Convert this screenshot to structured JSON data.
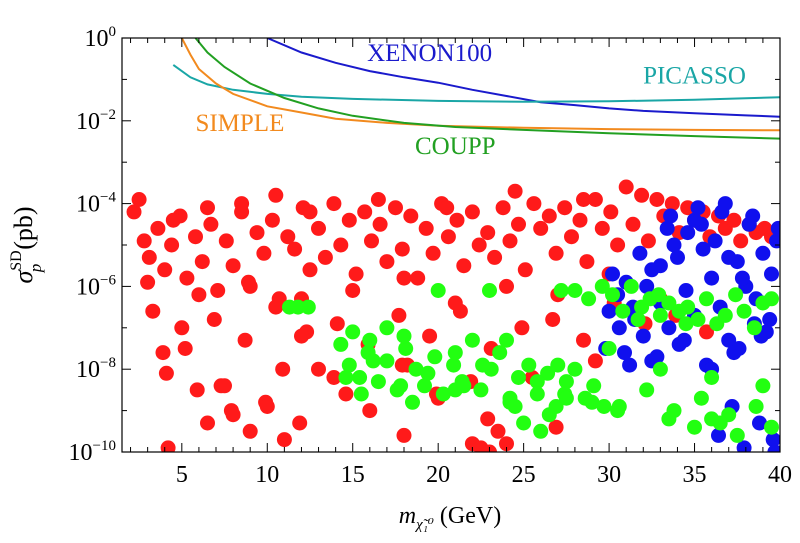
{
  "chart_data": {
    "type": "scatter",
    "title": "",
    "xlabel": {
      "symbol": "m",
      "subscript": "χ̃₁⁰",
      "unit": "(GeV)"
    },
    "ylabel": {
      "symbol": "σ",
      "sub": "p",
      "sup": "SD",
      "unit": "(pb)"
    },
    "xlim": [
      1.5,
      40
    ],
    "ylim_log10": [
      -10,
      0
    ],
    "y_scale": "log",
    "x_ticks": [
      5,
      10,
      15,
      20,
      25,
      30,
      35,
      40
    ],
    "y_ticks": [
      {
        "base": "10",
        "exp": "0"
      },
      {
        "base": "10",
        "exp": "−2"
      },
      {
        "base": "10",
        "exp": "−4"
      },
      {
        "base": "10",
        "exp": "−6"
      },
      {
        "base": "10",
        "exp": "−8"
      },
      {
        "base": "10",
        "exp": "−10"
      }
    ],
    "y_tick_exponents": [
      0,
      -2,
      -4,
      -6,
      -8,
      -10
    ],
    "limit_curves": [
      {
        "name": "XENON100",
        "color": "#1a1acc",
        "label_x": 19.5,
        "label_log10y": -0.55,
        "points": [
          [
            10.0,
            0.0
          ],
          [
            12,
            -0.35
          ],
          [
            14,
            -0.6
          ],
          [
            16,
            -0.8
          ],
          [
            18,
            -0.95
          ],
          [
            20,
            -1.08
          ],
          [
            22,
            -1.25
          ],
          [
            24,
            -1.4
          ],
          [
            26,
            -1.55
          ],
          [
            28,
            -1.62
          ],
          [
            30,
            -1.7
          ],
          [
            32,
            -1.76
          ],
          [
            35,
            -1.82
          ],
          [
            38,
            -1.87
          ],
          [
            40,
            -1.9
          ]
        ]
      },
      {
        "name": "PICASSO",
        "color": "#1aa6a6",
        "label_x": 35.0,
        "label_log10y": -1.1,
        "points": [
          [
            4.5,
            -0.65
          ],
          [
            5.5,
            -0.95
          ],
          [
            6.5,
            -1.12
          ],
          [
            8,
            -1.25
          ],
          [
            10,
            -1.35
          ],
          [
            12,
            -1.42
          ],
          [
            15,
            -1.47
          ],
          [
            20,
            -1.52
          ],
          [
            25,
            -1.54
          ],
          [
            30,
            -1.53
          ],
          [
            35,
            -1.49
          ],
          [
            40,
            -1.43
          ]
        ]
      },
      {
        "name": "SIMPLE",
        "color": "#f28a1e",
        "label_x": 8.4,
        "label_log10y": -2.25,
        "points": [
          [
            5.0,
            0.0
          ],
          [
            5.5,
            -0.4
          ],
          [
            6,
            -0.75
          ],
          [
            7,
            -1.1
          ],
          [
            8,
            -1.35
          ],
          [
            10,
            -1.65
          ],
          [
            12,
            -1.8
          ],
          [
            14,
            -1.95
          ],
          [
            17,
            -2.05
          ],
          [
            20,
            -2.12
          ],
          [
            25,
            -2.17
          ],
          [
            30,
            -2.2
          ],
          [
            35,
            -2.22
          ],
          [
            40,
            -2.23
          ]
        ]
      },
      {
        "name": "COUPP",
        "color": "#22a022",
        "label_x": 21.0,
        "label_log10y": -2.8,
        "points": [
          [
            5.8,
            0.0
          ],
          [
            6.5,
            -0.35
          ],
          [
            7.5,
            -0.7
          ],
          [
            9,
            -1.1
          ],
          [
            11,
            -1.45
          ],
          [
            13,
            -1.7
          ],
          [
            15,
            -1.88
          ],
          [
            18,
            -2.05
          ],
          [
            21,
            -2.15
          ],
          [
            25,
            -2.22
          ],
          [
            30,
            -2.3
          ],
          [
            35,
            -2.37
          ],
          [
            40,
            -2.43
          ]
        ]
      }
    ],
    "scatter_series": [
      {
        "name": "red points",
        "color": "#ff1a1a",
        "x": [
          2.2,
          2.8,
          3.1,
          3.6,
          4.0,
          4.4,
          4.9,
          5.3,
          5.8,
          6.2,
          6.7,
          7.1,
          7.6,
          8.0,
          8.5,
          8.9,
          9.4,
          9.8,
          10.3,
          10.7,
          11.2,
          11.6,
          12.1,
          12.5,
          13.0,
          13.4,
          13.9,
          14.3,
          14.8,
          15.2,
          15.7,
          16.1,
          16.6,
          17.0,
          17.5,
          17.9,
          18.4,
          18.8,
          19.3,
          19.7,
          20.2,
          20.6,
          21.1,
          21.5,
          22.0,
          22.4,
          22.9,
          23.3,
          23.8,
          24.2,
          24.7,
          25.1,
          25.6,
          26.0,
          26.5,
          26.9,
          27.4,
          27.8,
          28.3,
          28.7,
          29.2,
          29.6,
          30.1,
          30.5,
          31.0,
          31.4,
          31.9,
          32.3,
          32.8,
          33.2,
          33.7,
          34.1,
          34.6,
          35.0,
          35.5,
          35.9,
          36.4,
          36.8,
          37.3,
          37.7,
          38.2,
          38.6,
          39.1,
          39.5,
          3.3,
          5.0,
          6.9,
          8.7,
          10.5,
          12.3,
          14.1,
          15.9,
          17.7,
          19.5,
          21.3,
          23.1,
          24.9,
          26.7,
          28.5,
          30.3,
          32.1,
          33.9,
          35.7,
          4.1,
          7.3,
          10.9,
          14.6,
          18.2,
          21.9,
          25.5,
          29.2,
          3.0,
          6.0,
          9.0,
          12.0,
          15.0,
          18.0,
          21.0,
          24.0,
          27.0,
          30.0,
          33.0,
          2.5,
          4.5,
          6.5,
          8.5,
          10.5,
          12.5,
          16.5,
          20.5,
          24.5,
          28.5,
          3.9,
          5.9,
          7.9,
          9.9,
          11.9,
          13.9,
          17.9,
          19.9,
          22.9,
          26.9,
          8.0,
          9.0,
          10.0,
          11.0,
          12.0,
          13.0,
          16.0,
          18.0,
          20.0,
          22.0,
          22.5,
          23.0,
          23.5,
          24.0,
          6.5,
          7.5,
          4.2,
          5.2
        ],
        "log10y": [
          -4.2,
          -4.9,
          -5.3,
          -4.6,
          -5.6,
          -5.0,
          -4.3,
          -5.8,
          -4.8,
          -5.4,
          -4.5,
          -6.1,
          -4.9,
          -5.5,
          -4.2,
          -5.9,
          -4.7,
          -5.2,
          -4.4,
          -6.3,
          -4.8,
          -5.1,
          -4.1,
          -5.6,
          -4.6,
          -5.3,
          -4.0,
          -5.0,
          -4.4,
          -5.7,
          -4.2,
          -4.9,
          -4.5,
          -5.4,
          -4.1,
          -5.1,
          -4.3,
          -5.8,
          -4.6,
          -5.2,
          -4.0,
          -4.8,
          -4.4,
          -5.5,
          -4.2,
          -5.0,
          -4.7,
          -5.3,
          -4.1,
          -4.9,
          -4.5,
          -5.6,
          -4.0,
          -4.6,
          -4.3,
          -5.2,
          -4.1,
          -4.8,
          -4.4,
          -5.4,
          -3.9,
          -4.6,
          -4.2,
          -5.0,
          -3.6,
          -4.5,
          -3.8,
          -4.9,
          -3.9,
          -4.3,
          -4.0,
          -4.7,
          -4.1,
          -4.4,
          -4.2,
          -4.8,
          -4.3,
          -4.6,
          -4.4,
          -4.9,
          -4.5,
          -4.7,
          -4.6,
          -4.8,
          -6.6,
          -7.0,
          -6.8,
          -7.3,
          -6.5,
          -7.1,
          -6.9,
          -7.4,
          -6.7,
          -7.2,
          -6.6,
          -7.5,
          -7.0,
          -6.8,
          -7.3,
          -6.4,
          -6.9,
          -6.7,
          -7.1,
          -8.1,
          -8.4,
          -8.0,
          -8.6,
          -7.9,
          -8.3,
          -8.2,
          -7.8,
          -5.9,
          -6.2,
          -6.0,
          -6.3,
          -6.1,
          -5.8,
          -6.4,
          -6.0,
          -6.2,
          -5.7,
          -6.3,
          -3.9,
          -4.4,
          -4.1,
          -4.0,
          -3.8,
          -4.2,
          -3.9,
          -4.1,
          -3.7,
          -3.9,
          -7.6,
          -8.5,
          -9.0,
          -8.8,
          -9.3,
          -8.2,
          -7.9,
          -8.6,
          -9.2,
          -9.4,
          -9.1,
          -9.5,
          -8.9,
          -9.7,
          -7.2,
          -8.0,
          -9.0,
          -9.6,
          -8.7,
          -9.8,
          -9.9,
          -10.0,
          -9.5,
          -9.8,
          -9.3,
          -8.4,
          -9.9,
          -7.5
        ]
      },
      {
        "name": "blue points",
        "color": "#1010ee",
        "x": [
          30.0,
          30.5,
          31.0,
          31.5,
          32.0,
          32.5,
          33.0,
          33.5,
          34.0,
          34.5,
          35.0,
          35.5,
          36.0,
          36.5,
          37.0,
          37.5,
          38.0,
          38.5,
          39.0,
          39.5,
          29.8,
          30.6,
          31.4,
          32.2,
          33.0,
          33.8,
          34.6,
          35.4,
          36.2,
          37.0,
          37.8,
          38.6,
          39.4,
          30.2,
          31.8,
          33.4,
          35.0,
          36.6,
          38.2,
          39.8,
          30.9,
          32.5,
          34.1,
          35.7,
          37.3,
          38.9,
          31.2,
          32.8,
          34.4,
          36.0,
          37.6,
          39.2,
          33.6,
          35.2,
          36.8,
          38.4,
          39.9,
          36.4,
          37.9,
          39.6,
          38.8,
          39.7,
          37.2
        ],
        "log10y": [
          -6.6,
          -6.2,
          -5.9,
          -6.8,
          -7.2,
          -5.6,
          -6.4,
          -7.0,
          -5.3,
          -6.1,
          -6.7,
          -5.1,
          -5.8,
          -6.5,
          -7.3,
          -5.4,
          -6.0,
          -6.9,
          -5.2,
          -5.7,
          -7.5,
          -7.0,
          -6.5,
          -6.0,
          -5.5,
          -5.0,
          -4.7,
          -4.5,
          -4.9,
          -5.3,
          -5.8,
          -6.3,
          -6.8,
          -5.7,
          -5.2,
          -4.6,
          -4.4,
          -4.2,
          -4.5,
          -4.9,
          -7.6,
          -7.8,
          -7.4,
          -7.9,
          -7.6,
          -7.2,
          -7.9,
          -7.7,
          -7.3,
          -8.0,
          -7.5,
          -7.1,
          -4.3,
          -4.1,
          -4.0,
          -4.3,
          -4.6,
          -9.6,
          -9.9,
          -9.7,
          -9.3,
          -10.0,
          -8.9
        ]
      },
      {
        "name": "green points",
        "color": "#22ff11",
        "x": [
          11.3,
          11.8,
          12.4,
          14.3,
          14.8,
          15.4,
          15.9,
          16.5,
          17.0,
          17.6,
          18.1,
          18.7,
          19.2,
          19.8,
          20.3,
          20.9,
          21.4,
          22.0,
          22.5,
          23.1,
          23.6,
          24.2,
          24.7,
          25.3,
          25.8,
          26.4,
          26.9,
          27.5,
          28.0,
          28.6,
          29.1,
          29.7,
          30.2,
          30.8,
          31.3,
          31.9,
          32.4,
          33.0,
          33.5,
          34.1,
          34.6,
          35.2,
          35.7,
          36.3,
          36.8,
          37.4,
          37.9,
          38.5,
          39.0,
          39.5,
          14.6,
          16.2,
          17.8,
          19.4,
          21.0,
          22.6,
          24.2,
          25.8,
          27.4,
          29.0,
          30.6,
          32.2,
          33.8,
          35.4,
          37.0,
          38.6,
          15.5,
          18.5,
          21.5,
          24.5,
          27.5,
          30.5,
          33.5,
          36.5,
          39.5,
          18.0,
          21.0,
          24.0,
          27.0,
          30.0,
          33.0,
          36.0,
          39.0,
          25.0,
          26.0,
          26.5,
          27.2,
          28.8,
          29.6,
          31.7,
          32.9,
          34.5,
          15.0,
          16.0,
          17.0,
          20.0,
          23.0,
          28.0,
          35.0,
          36.0,
          37.5
        ],
        "log10y": [
          -6.5,
          -6.5,
          -6.5,
          -7.4,
          -7.9,
          -8.2,
          -7.6,
          -8.3,
          -7.8,
          -8.5,
          -7.5,
          -8.0,
          -8.4,
          -7.7,
          -8.6,
          -7.9,
          -8.3,
          -7.3,
          -8.5,
          -8.0,
          -7.6,
          -8.8,
          -8.2,
          -7.9,
          -8.6,
          -8.1,
          -8.9,
          -8.3,
          -8.0,
          -8.7,
          -8.4,
          -8.9,
          -6.2,
          -6.6,
          -6.0,
          -6.5,
          -6.3,
          -6.7,
          -6.4,
          -6.6,
          -6.5,
          -6.8,
          -6.3,
          -6.9,
          -6.7,
          -6.2,
          -6.6,
          -7.0,
          -6.4,
          -6.3,
          -8.2,
          -7.8,
          -8.4,
          -8.1,
          -8.5,
          -7.9,
          -8.7,
          -8.3,
          -8.6,
          -8.8,
          -8.9,
          -8.5,
          -9.0,
          -8.7,
          -9.1,
          -8.9,
          -8.6,
          -8.8,
          -8.4,
          -8.9,
          -8.7,
          -9.0,
          -9.2,
          -9.3,
          -9.4,
          -7.2,
          -7.6,
          -7.3,
          -7.9,
          -7.5,
          -8.0,
          -8.2,
          -8.4,
          -9.3,
          -9.5,
          -9.1,
          -6.1,
          -6.3,
          -6.0,
          -6.8,
          -6.2,
          -6.9,
          -7.1,
          -7.3,
          -7.0,
          -6.1,
          -6.1,
          -6.1,
          -9.4,
          -9.2,
          -9.6
        ]
      }
    ]
  }
}
